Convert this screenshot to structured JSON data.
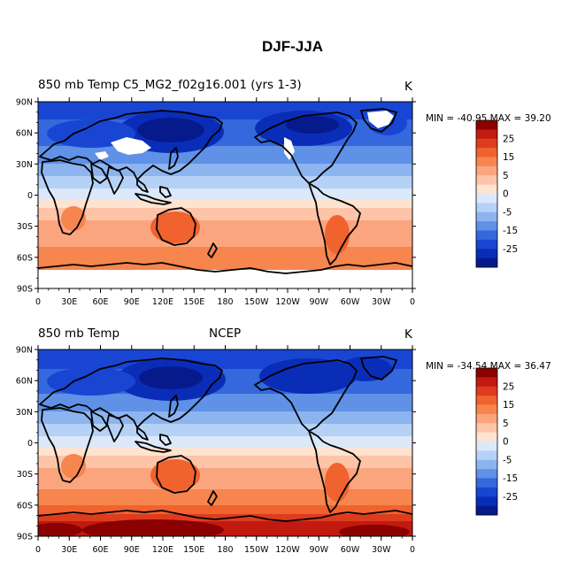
{
  "figure": {
    "title": "DJF-JJA"
  },
  "panels": [
    {
      "id": "model",
      "left_title": "850 mb Temp",
      "center_title": "CESM CAM5_MG2_f02g16.001 (yrs 1-3)",
      "center_title_display": "C5_MG2_f02g16.001 (yrs 1-3)",
      "units": "K",
      "min_max": "MIN = -40.95 MAX =  39.20"
    },
    {
      "id": "obs",
      "left_title": "850 mb Temp",
      "center_title": "NCEP",
      "center_title_display": "NCEP",
      "units": "K",
      "min_max": "MIN = -34.54 MAX =  36.47"
    }
  ],
  "axes": {
    "lat_labels": [
      "90N",
      "60N",
      "30N",
      "0",
      "30S",
      "60S",
      "90S"
    ],
    "lon_labels": [
      "0",
      "30E",
      "60E",
      "90E",
      "120E",
      "150E",
      "180",
      "150W",
      "120W",
      "90W",
      "60W",
      "30W",
      "0"
    ]
  },
  "colorbar": {
    "labels": [
      "25",
      "15",
      "5",
      "0",
      "-5",
      "-15",
      "-25"
    ],
    "colors": [
      "#8b0000",
      "#c21a10",
      "#dd3c1e",
      "#f0622e",
      "#f7854e",
      "#fba57e",
      "#fdc4a8",
      "#fde3d0",
      "#dbe8fa",
      "#b6d1f6",
      "#8cb4ef",
      "#5f91e6",
      "#3468dc",
      "#1846d2",
      "#0a2db8",
      "#061a8c"
    ]
  },
  "colors": {
    "land_outline": "#000000",
    "missing": "#ffffff"
  }
}
